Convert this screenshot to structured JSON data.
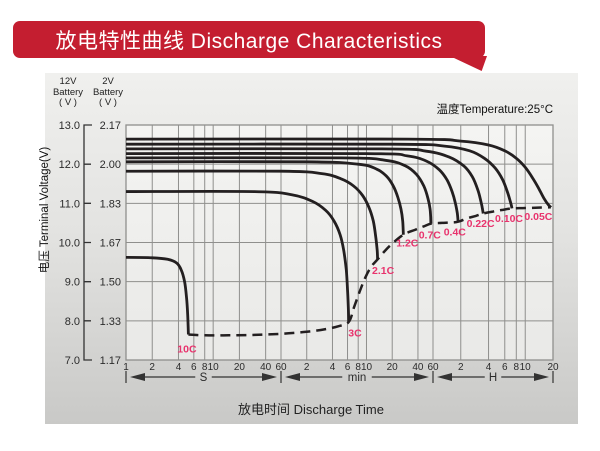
{
  "banner": {
    "title": "放电特性曲线 Discharge Characteristics",
    "bg_color": "#c41e30",
    "text_color": "#ffffff"
  },
  "chart_data": {
    "type": "line",
    "title": "Discharge Characteristics",
    "temperature_label": "温度Temperature:25°C",
    "xlabel": "放电时间 Discharge Time",
    "ylabel": "电压 Terminal Voltage(V)",
    "legend_position": "none",
    "grid": true,
    "colors": {
      "curve": "#231f20",
      "grid_line": "#8f8f8d",
      "curve_label": "#e8336d",
      "axis_text": "#2b2b2b",
      "plot_bg_top": "#f4f4f2",
      "plot_bg_bottom": "#e9e9e7"
    },
    "y_axis": {
      "header_12v": [
        "12V",
        "Battery",
        "( V )"
      ],
      "header_2v": [
        "2V",
        "Battery",
        "( V )"
      ],
      "ticks_12v": [
        "13.0",
        "12.0",
        "11.0",
        "10.0",
        "9.0",
        "8.0",
        "7.0"
      ],
      "ticks_2v": [
        "2.17",
        "2.00",
        "1.83",
        "1.67",
        "1.50",
        "1.33",
        "1.17"
      ],
      "vmin": 7.0,
      "vmax": 13.0
    },
    "x_axis": {
      "scale": "log-3-segments",
      "segments": [
        {
          "unit": "S",
          "multiplier_s": 1,
          "max": 60,
          "ticks": [
            1,
            2,
            4,
            6,
            8,
            10,
            20,
            40,
            60
          ]
        },
        {
          "unit": "min",
          "multiplier_s": 60,
          "max": 60,
          "ticks": [
            2,
            4,
            6,
            8,
            10,
            20,
            40,
            60
          ]
        },
        {
          "unit": "H",
          "multiplier_s": 3600,
          "max": 20,
          "ticks": [
            2,
            4,
            6,
            8,
            10,
            20
          ]
        }
      ]
    },
    "series": [
      {
        "label": "0.05C",
        "points_t_s_voltage": [
          [
            1,
            12.64
          ],
          [
            1800,
            12.64
          ],
          [
            7200,
            12.59
          ],
          [
            14400,
            12.49
          ],
          [
            21600,
            12.34
          ],
          [
            28800,
            12.15
          ],
          [
            36000,
            11.92
          ],
          [
            43200,
            11.65
          ],
          [
            50400,
            11.38
          ],
          [
            57600,
            11.12
          ],
          [
            64800,
            10.95
          ],
          [
            68400,
            10.9
          ]
        ]
      },
      {
        "label": "0.10C",
        "points_t_s_voltage": [
          [
            1,
            12.51
          ],
          [
            1200,
            12.51
          ],
          [
            4800,
            12.46
          ],
          [
            9000,
            12.34
          ],
          [
            13000,
            12.15
          ],
          [
            17000,
            11.9
          ],
          [
            20500,
            11.6
          ],
          [
            23000,
            11.3
          ],
          [
            24800,
            11.05
          ],
          [
            25900,
            10.87
          ]
        ]
      },
      {
        "label": "0.22C",
        "points_t_s_voltage": [
          [
            1,
            12.39
          ],
          [
            900,
            12.39
          ],
          [
            3000,
            12.33
          ],
          [
            5400,
            12.18
          ],
          [
            7800,
            11.95
          ],
          [
            9600,
            11.68
          ],
          [
            11000,
            11.35
          ],
          [
            11900,
            11.05
          ],
          [
            12400,
            10.85
          ],
          [
            12600,
            10.74
          ]
        ]
      },
      {
        "label": "0.4C",
        "points_t_s_voltage": [
          [
            1,
            12.27
          ],
          [
            600,
            12.27
          ],
          [
            1800,
            12.21
          ],
          [
            3000,
            12.08
          ],
          [
            4200,
            11.86
          ],
          [
            5100,
            11.6
          ],
          [
            5800,
            11.3
          ],
          [
            6300,
            11.0
          ],
          [
            6600,
            10.75
          ],
          [
            6740,
            10.53
          ]
        ]
      },
      {
        "label": "0.7C",
        "points_t_s_voltage": [
          [
            1,
            12.16
          ],
          [
            300,
            12.16
          ],
          [
            1000,
            12.1
          ],
          [
            1700,
            11.96
          ],
          [
            2300,
            11.74
          ],
          [
            2800,
            11.45
          ],
          [
            3150,
            11.12
          ],
          [
            3330,
            10.85
          ],
          [
            3380,
            10.65
          ],
          [
            3400,
            10.48
          ]
        ]
      },
      {
        "label": "1.2C",
        "points_t_s_voltage": [
          [
            1,
            12.06
          ],
          [
            120,
            12.06
          ],
          [
            480,
            12.0
          ],
          [
            780,
            11.88
          ],
          [
            1020,
            11.7
          ],
          [
            1230,
            11.45
          ],
          [
            1400,
            11.15
          ],
          [
            1520,
            10.85
          ],
          [
            1590,
            10.55
          ],
          [
            1620,
            10.2
          ]
        ]
      },
      {
        "label": "2.1C",
        "points_t_s_voltage": [
          [
            1,
            11.82
          ],
          [
            60,
            11.82
          ],
          [
            180,
            11.76
          ],
          [
            300,
            11.63
          ],
          [
            420,
            11.45
          ],
          [
            540,
            11.2
          ],
          [
            640,
            10.9
          ],
          [
            720,
            10.55
          ],
          [
            770,
            10.15
          ],
          [
            800,
            9.8
          ],
          [
            810,
            9.57
          ]
        ]
      },
      {
        "label": "3C",
        "points_t_s_voltage": [
          [
            1,
            11.3
          ],
          [
            30,
            11.3
          ],
          [
            80,
            11.22
          ],
          [
            140,
            11.05
          ],
          [
            200,
            10.82
          ],
          [
            250,
            10.55
          ],
          [
            295,
            10.2
          ],
          [
            325,
            9.8
          ],
          [
            348,
            9.3
          ],
          [
            360,
            8.8
          ],
          [
            368,
            8.35
          ],
          [
            372,
            7.97
          ]
        ]
      },
      {
        "label": "10C",
        "points_t_s_voltage": [
          [
            1,
            9.62
          ],
          [
            2,
            9.61
          ],
          [
            3,
            9.57
          ],
          [
            3.8,
            9.48
          ],
          [
            4.3,
            9.3
          ],
          [
            4.7,
            9.0
          ],
          [
            4.95,
            8.6
          ],
          [
            5.1,
            8.15
          ],
          [
            5.2,
            7.65
          ]
        ]
      }
    ],
    "cutoff_envelope": {
      "style": "dashed",
      "points_t_s_voltage": [
        [
          5.2,
          7.65
        ],
        [
          8,
          7.63
        ],
        [
          15,
          7.63
        ],
        [
          30,
          7.64
        ],
        [
          60,
          7.67
        ],
        [
          120,
          7.72
        ],
        [
          200,
          7.79
        ],
        [
          280,
          7.86
        ],
        [
          372,
          7.97
        ],
        [
          430,
          8.35
        ],
        [
          500,
          8.75
        ],
        [
          580,
          9.1
        ],
        [
          680,
          9.38
        ],
        [
          810,
          9.57
        ],
        [
          980,
          9.78
        ],
        [
          1200,
          9.97
        ],
        [
          1620,
          10.2
        ],
        [
          2200,
          10.32
        ],
        [
          2800,
          10.41
        ],
        [
          3400,
          10.48
        ],
        [
          4500,
          10.5
        ],
        [
          5500,
          10.51
        ],
        [
          6740,
          10.53
        ],
        [
          8500,
          10.62
        ],
        [
          10500,
          10.68
        ],
        [
          12600,
          10.74
        ],
        [
          16000,
          10.79
        ],
        [
          20000,
          10.83
        ],
        [
          25900,
          10.87
        ],
        [
          36000,
          10.88
        ],
        [
          50000,
          10.89
        ],
        [
          68400,
          10.9
        ]
      ]
    },
    "curve_labels": [
      {
        "text": "10C",
        "t": 5,
        "v": 7.3
      },
      {
        "text": "3C",
        "t": 440,
        "v": 7.7
      },
      {
        "text": "2.1C",
        "t": 940,
        "v": 9.3
      },
      {
        "text": "1.2C",
        "t": 1800,
        "v": 10.0
      },
      {
        "text": "0.7C",
        "t": 3300,
        "v": 10.2
      },
      {
        "text": "0.4C",
        "t": 6200,
        "v": 10.28
      },
      {
        "text": "0.22C",
        "t": 11800,
        "v": 10.5
      },
      {
        "text": "0.10C",
        "t": 24000,
        "v": 10.62
      },
      {
        "text": "0.05C",
        "t": 50000,
        "v": 10.68
      }
    ]
  }
}
